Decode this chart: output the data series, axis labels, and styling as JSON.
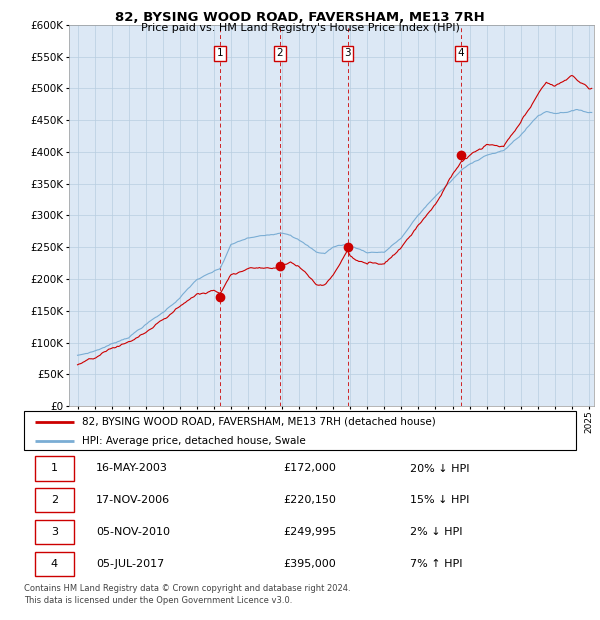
{
  "title": "82, BYSING WOOD ROAD, FAVERSHAM, ME13 7RH",
  "subtitle": "Price paid vs. HM Land Registry's House Price Index (HPI)",
  "background_color": "#dce8f5",
  "plot_bg_color": "#dce8f5",
  "hpi_color": "#7aadd4",
  "price_color": "#cc0000",
  "vline_color": "#cc0000",
  "ylim": [
    0,
    600000
  ],
  "yticks": [
    0,
    50000,
    100000,
    150000,
    200000,
    250000,
    300000,
    350000,
    400000,
    450000,
    500000,
    550000,
    600000
  ],
  "xlim_start": 1994.5,
  "xlim_end": 2025.3,
  "sale_dates": [
    2003.37,
    2006.88,
    2010.84,
    2017.5
  ],
  "sale_prices": [
    172000,
    220150,
    249995,
    395000
  ],
  "sale_labels": [
    "1",
    "2",
    "3",
    "4"
  ],
  "sale_info": [
    {
      "label": "1",
      "date": "16-MAY-2003",
      "price": "£172,000",
      "rel": "20% ↓ HPI"
    },
    {
      "label": "2",
      "date": "17-NOV-2006",
      "price": "£220,150",
      "rel": "15% ↓ HPI"
    },
    {
      "label": "3",
      "date": "05-NOV-2010",
      "price": "£249,995",
      "rel": "2% ↓ HPI"
    },
    {
      "label": "4",
      "date": "05-JUL-2017",
      "price": "£395,000",
      "rel": "7% ↑ HPI"
    }
  ],
  "legend_line1": "82, BYSING WOOD ROAD, FAVERSHAM, ME13 7RH (detached house)",
  "legend_line2": "HPI: Average price, detached house, Swale",
  "footer": "Contains HM Land Registry data © Crown copyright and database right 2024.\nThis data is licensed under the Open Government Licence v3.0."
}
